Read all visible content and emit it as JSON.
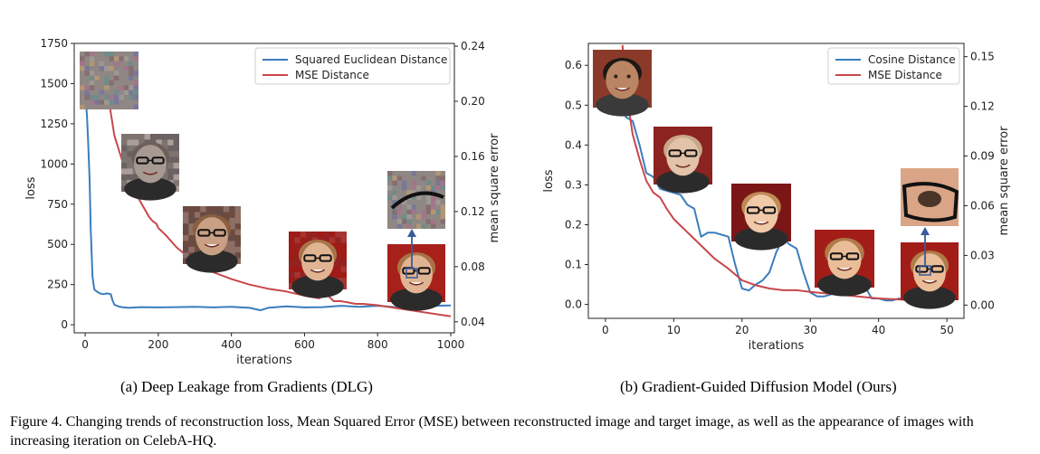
{
  "chart_data": [
    {
      "type": "line",
      "xlabel": "iterations",
      "ylabel": "loss",
      "y2label": "mean square error",
      "xlim": [
        -30,
        1010
      ],
      "ylim": [
        -50,
        1750
      ],
      "y2lim": [
        0.032,
        0.242
      ],
      "xticks": [
        0,
        200,
        400,
        600,
        800,
        1000
      ],
      "yticks": [
        0,
        250,
        500,
        750,
        1000,
        1250,
        1500,
        1750
      ],
      "y2ticks": [
        "0.04",
        "0.08",
        "0.12",
        "0.16",
        "0.20",
        "0.24"
      ],
      "legend_position": "upper-right",
      "series": [
        {
          "name": "Squared Euclidean Distance",
          "axis": "left",
          "color": "#3a7dbd",
          "x": [
            0,
            5,
            8,
            12,
            15,
            20,
            25,
            30,
            40,
            50,
            60,
            70,
            75,
            80,
            90,
            100,
            120,
            150,
            200,
            250,
            300,
            350,
            400,
            450,
            480,
            500,
            550,
            600,
            650,
            700,
            750,
            800,
            850,
            880,
            900,
            920,
            950,
            1000
          ],
          "y": [
            1450,
            1300,
            1150,
            900,
            600,
            300,
            220,
            210,
            195,
            190,
            195,
            190,
            150,
            125,
            115,
            110,
            105,
            110,
            108,
            110,
            112,
            108,
            112,
            105,
            90,
            105,
            115,
            108,
            110,
            118,
            112,
            118,
            110,
            100,
            112,
            118,
            118,
            120
          ]
        },
        {
          "name": "MSE Distance",
          "axis": "right",
          "color": "#c8474a",
          "x": [
            65,
            80,
            100,
            130,
            160,
            175,
            185,
            195,
            200,
            220,
            250,
            300,
            350,
            400,
            450,
            500,
            550,
            600,
            620,
            640,
            660,
            680,
            700,
            720,
            740,
            760,
            800,
            850,
            900,
            950,
            1000
          ],
          "y": [
            0.2,
            0.175,
            0.158,
            0.137,
            0.123,
            0.116,
            0.113,
            0.111,
            0.108,
            0.103,
            0.094,
            0.083,
            0.076,
            0.071,
            0.067,
            0.064,
            0.062,
            0.059,
            0.058,
            0.057,
            0.06,
            0.055,
            0.055,
            0.054,
            0.053,
            0.053,
            0.052,
            0.05,
            0.048,
            0.046,
            0.044
          ]
        }
      ]
    },
    {
      "type": "line",
      "xlabel": "iterations",
      "ylabel": "loss",
      "y2label": "mean square error",
      "xlim": [
        -2.5,
        52.5
      ],
      "ylim": [
        -0.035,
        0.655
      ],
      "y2lim": [
        -0.008,
        0.158
      ],
      "xticks": [
        0,
        10,
        20,
        30,
        40,
        50
      ],
      "yticks": [
        "0.0",
        "0.1",
        "0.2",
        "0.3",
        "0.4",
        "0.5",
        "0.6"
      ],
      "y2ticks": [
        "0.00",
        "0.03",
        "0.06",
        "0.09",
        "0.12",
        "0.15"
      ],
      "legend_position": "upper-right",
      "series": [
        {
          "name": "Cosine Distance",
          "axis": "left",
          "color": "#3a7dbd",
          "x": [
            2.5,
            3,
            4,
            5,
            6,
            7,
            8,
            9,
            10,
            11,
            12,
            13,
            14,
            15,
            16,
            17,
            18,
            19,
            20,
            21,
            22,
            23,
            24,
            25,
            26,
            27,
            28,
            29,
            30,
            31,
            32,
            33,
            34,
            35,
            36,
            37,
            38,
            39,
            40,
            41,
            42,
            43,
            44,
            45,
            46,
            47,
            48,
            49,
            50
          ],
          "y": [
            0.5,
            0.47,
            0.46,
            0.4,
            0.33,
            0.32,
            0.29,
            0.285,
            0.28,
            0.275,
            0.25,
            0.24,
            0.17,
            0.18,
            0.18,
            0.175,
            0.17,
            0.1,
            0.04,
            0.035,
            0.05,
            0.06,
            0.08,
            0.13,
            0.165,
            0.15,
            0.14,
            0.08,
            0.03,
            0.02,
            0.02,
            0.025,
            0.04,
            0.04,
            0.045,
            0.045,
            0.045,
            0.015,
            0.015,
            0.01,
            0.01,
            0.015,
            0.01,
            0.01,
            0.01,
            0.01,
            0.01,
            0.008,
            0.008
          ]
        },
        {
          "name": "MSE Distance",
          "axis": "right",
          "color": "#c8474a",
          "x": [
            2.5,
            3,
            4,
            5,
            6,
            7,
            8,
            9,
            10,
            12,
            14,
            16,
            18,
            20,
            22,
            24,
            26,
            28,
            30,
            35,
            40,
            45,
            50
          ],
          "y": [
            0.157,
            0.13,
            0.103,
            0.088,
            0.075,
            0.068,
            0.065,
            0.058,
            0.052,
            0.044,
            0.036,
            0.028,
            0.022,
            0.015,
            0.012,
            0.01,
            0.009,
            0.009,
            0.008,
            0.006,
            0.004,
            0.003,
            0.003
          ]
        }
      ]
    }
  ],
  "subcaptions": {
    "a": "(a) Deep Leakage from Gradients (DLG)",
    "b": "(b) Gradient-Guided Diffusion Model (Ours)"
  },
  "caption": "Figure 4. Changing trends of reconstruction loss, Mean Squared Error (MSE) between reconstructed image and target image, as well as the appearance of images with increasing iteration on CelebA-HQ."
}
